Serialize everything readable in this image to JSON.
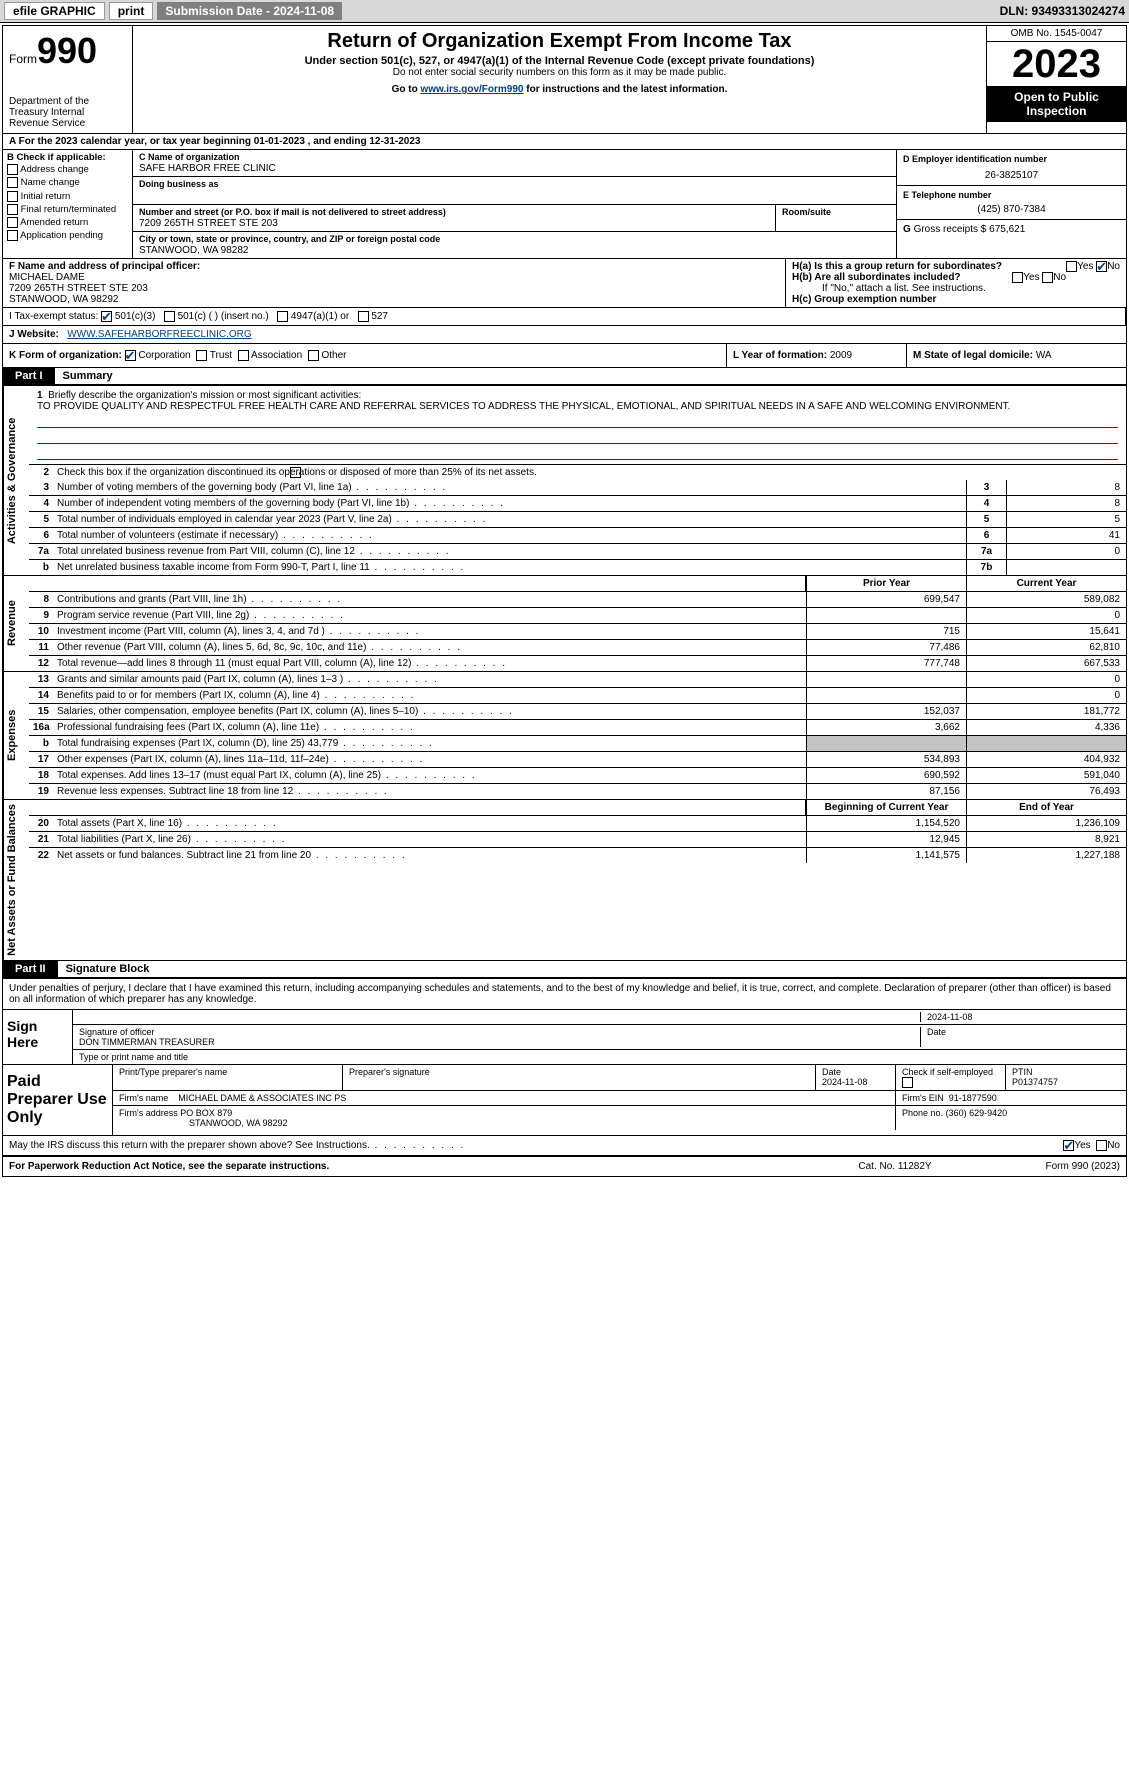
{
  "topbar": {
    "efile": "efile GRAPHIC",
    "print": "print",
    "submission_label": "Submission Date - 2024-11-08",
    "dln": "DLN: 93493313024274"
  },
  "header": {
    "form_prefix": "Form",
    "form_number": "990",
    "title": "Return of Organization Exempt From Income Tax",
    "subtitle": "Under section 501(c), 527, or 4947(a)(1) of the Internal Revenue Code (except private foundations)",
    "note1": "Do not enter social security numbers on this form as it may be made public.",
    "note2_prefix": "Go to ",
    "note2_link": "www.irs.gov/Form990",
    "note2_suffix": " for instructions and the latest information.",
    "dept": "Department of the Treasury Internal Revenue Service",
    "omb": "OMB No. 1545-0047",
    "year": "2023",
    "open": "Open to Public Inspection"
  },
  "period": "For the 2023 calendar year, or tax year beginning 01-01-2023    , and ending 12-31-2023",
  "section_b": {
    "header": "B Check if applicable:",
    "opts": [
      "Address change",
      "Name change",
      "Initial return",
      "Final return/terminated",
      "Amended return",
      "Application pending"
    ]
  },
  "section_c": {
    "name_label": "C Name of organization",
    "name": "SAFE HARBOR FREE CLINIC",
    "dba_label": "Doing business as",
    "dba": "",
    "addr_label": "Number and street (or P.O. box if mail is not delivered to street address)",
    "addr": "7209 265TH STREET STE 203",
    "room_label": "Room/suite",
    "city_label": "City or town, state or province, country, and ZIP or foreign postal code",
    "city": "STANWOOD, WA  98282"
  },
  "section_d": {
    "label": "D Employer identification number",
    "value": "26-3825107"
  },
  "section_e": {
    "label": "E Telephone number",
    "value": "(425) 870-7384"
  },
  "section_g": {
    "label": "G",
    "text": "Gross receipts $",
    "value": "675,621"
  },
  "section_f": {
    "label": "F  Name and address of principal officer:",
    "name": "MICHAEL DAME",
    "addr1": "7209 265TH STREET STE 203",
    "addr2": "STANWOOD, WA  98292"
  },
  "section_h": {
    "ha": "H(a)  Is this a group return for subordinates?",
    "hb": "H(b)  Are all subordinates included?",
    "hb_note": "If \"No,\" attach a list. See instructions.",
    "hc": "H(c)  Group exemption number",
    "yes": "Yes",
    "no": "No"
  },
  "row_i": {
    "label": "I    Tax-exempt status:",
    "opt1": "501(c)(3)",
    "opt2": "501(c) (  ) (insert no.)",
    "opt3": "4947(a)(1) or",
    "opt4": "527"
  },
  "row_j": {
    "label": "J    Website:",
    "value": "WWW.SAFEHARBORFREECLINIC.ORG"
  },
  "row_k": {
    "label": "K Form of organization:",
    "opts": [
      "Corporation",
      "Trust",
      "Association",
      "Other"
    ],
    "l_label": "L Year of formation:",
    "l_val": "2009",
    "m_label": "M State of legal domicile:",
    "m_val": "WA"
  },
  "part1": {
    "label": "Part I",
    "title": "Summary"
  },
  "mission": {
    "q": "Briefly describe the organization's mission or most significant activities:",
    "text": "TO PROVIDE QUALITY AND RESPECTFUL FREE HEALTH CARE AND REFERRAL SERVICES TO ADDRESS THE PHYSICAL, EMOTIONAL, AND SPIRITUAL NEEDS IN A SAFE AND WELCOMING ENVIRONMENT."
  },
  "line2": "Check this box      if the organization discontinued its operations or disposed of more than 25% of its net assets.",
  "governance_rows": [
    {
      "n": "3",
      "desc": "Number of voting members of the governing body (Part VI, line 1a)",
      "box": "3",
      "val": "8"
    },
    {
      "n": "4",
      "desc": "Number of independent voting members of the governing body (Part VI, line 1b)",
      "box": "4",
      "val": "8"
    },
    {
      "n": "5",
      "desc": "Total number of individuals employed in calendar year 2023 (Part V, line 2a)",
      "box": "5",
      "val": "5"
    },
    {
      "n": "6",
      "desc": "Total number of volunteers (estimate if necessary)",
      "box": "6",
      "val": "41"
    },
    {
      "n": "7a",
      "desc": "Total unrelated business revenue from Part VIII, column (C), line 12",
      "box": "7a",
      "val": "0"
    },
    {
      "n": "b",
      "desc": "Net unrelated business taxable income from Form 990-T, Part I, line 11",
      "box": "7b",
      "val": ""
    }
  ],
  "col_headers": {
    "gov": "Activities & Governance",
    "rev": "Revenue",
    "exp": "Expenses",
    "net": "Net Assets or Fund Balances",
    "prior": "Prior Year",
    "current": "Current Year",
    "begin": "Beginning of Current Year",
    "end": "End of Year"
  },
  "revenue_rows": [
    {
      "n": "8",
      "desc": "Contributions and grants (Part VIII, line 1h)",
      "py": "699,547",
      "cy": "589,082"
    },
    {
      "n": "9",
      "desc": "Program service revenue (Part VIII, line 2g)",
      "py": "",
      "cy": "0"
    },
    {
      "n": "10",
      "desc": "Investment income (Part VIII, column (A), lines 3, 4, and 7d )",
      "py": "715",
      "cy": "15,641"
    },
    {
      "n": "11",
      "desc": "Other revenue (Part VIII, column (A), lines 5, 6d, 8c, 9c, 10c, and 11e)",
      "py": "77,486",
      "cy": "62,810"
    },
    {
      "n": "12",
      "desc": "Total revenue—add lines 8 through 11 (must equal Part VIII, column (A), line 12)",
      "py": "777,748",
      "cy": "667,533"
    }
  ],
  "expense_rows": [
    {
      "n": "13",
      "desc": "Grants and similar amounts paid (Part IX, column (A), lines 1–3 )",
      "py": "",
      "cy": "0"
    },
    {
      "n": "14",
      "desc": "Benefits paid to or for members (Part IX, column (A), line 4)",
      "py": "",
      "cy": "0"
    },
    {
      "n": "15",
      "desc": "Salaries, other compensation, employee benefits (Part IX, column (A), lines 5–10)",
      "py": "152,037",
      "cy": "181,772"
    },
    {
      "n": "16a",
      "desc": "Professional fundraising fees (Part IX, column (A), line 11e)",
      "py": "3,662",
      "cy": "4,336"
    },
    {
      "n": "b",
      "desc": "Total fundraising expenses (Part IX, column (D), line 25) 43,779",
      "py": "GREY",
      "cy": "GREY"
    },
    {
      "n": "17",
      "desc": "Other expenses (Part IX, column (A), lines 11a–11d, 11f–24e)",
      "py": "534,893",
      "cy": "404,932"
    },
    {
      "n": "18",
      "desc": "Total expenses. Add lines 13–17 (must equal Part IX, column (A), line 25)",
      "py": "690,592",
      "cy": "591,040"
    },
    {
      "n": "19",
      "desc": "Revenue less expenses. Subtract line 18 from line 12",
      "py": "87,156",
      "cy": "76,493"
    }
  ],
  "net_rows": [
    {
      "n": "20",
      "desc": "Total assets (Part X, line 16)",
      "py": "1,154,520",
      "cy": "1,236,109"
    },
    {
      "n": "21",
      "desc": "Total liabilities (Part X, line 26)",
      "py": "12,945",
      "cy": "8,921"
    },
    {
      "n": "22",
      "desc": "Net assets or fund balances. Subtract line 21 from line 20",
      "py": "1,141,575",
      "cy": "1,227,188"
    }
  ],
  "part2": {
    "label": "Part II",
    "title": "Signature Block"
  },
  "jurat": "Under penalties of perjury, I declare that I have examined this return, including accompanying schedules and statements, and to the best of my knowledge and belief, it is true, correct, and complete. Declaration of preparer (other than officer) is based on all information of which preparer has any knowledge.",
  "sign": {
    "here": "Sign Here",
    "date": "2024-11-08",
    "sig_label": "Signature of officer",
    "date_label": "Date",
    "name": "DON TIMMERMAN  TREASURER",
    "name_label": "Type or print name and title"
  },
  "paid": {
    "label": "Paid Preparer Use Only",
    "h_name": "Print/Type preparer's name",
    "h_sig": "Preparer's signature",
    "h_date": "Date",
    "date": "2024-11-08",
    "check_label": "Check         if self-employed",
    "ptin_label": "PTIN",
    "ptin": "P01374757",
    "firm_name_label": "Firm's name",
    "firm_name": "MICHAEL DAME & ASSOCIATES INC PS",
    "firm_ein_label": "Firm's EIN",
    "firm_ein": "91-1877590",
    "firm_addr_label": "Firm's address",
    "firm_addr1": "PO BOX 879",
    "firm_addr2": "STANWOOD, WA  98292",
    "phone_label": "Phone no.",
    "phone": "(360) 629-9420"
  },
  "discuss": {
    "q": "May the IRS discuss this return with the preparer shown above? See Instructions.",
    "yes": "Yes",
    "no": "No"
  },
  "footer": {
    "left": "For Paperwork Reduction Act Notice, see the separate instructions.",
    "mid": "Cat. No. 11282Y",
    "right": "Form 990 (2023)"
  }
}
